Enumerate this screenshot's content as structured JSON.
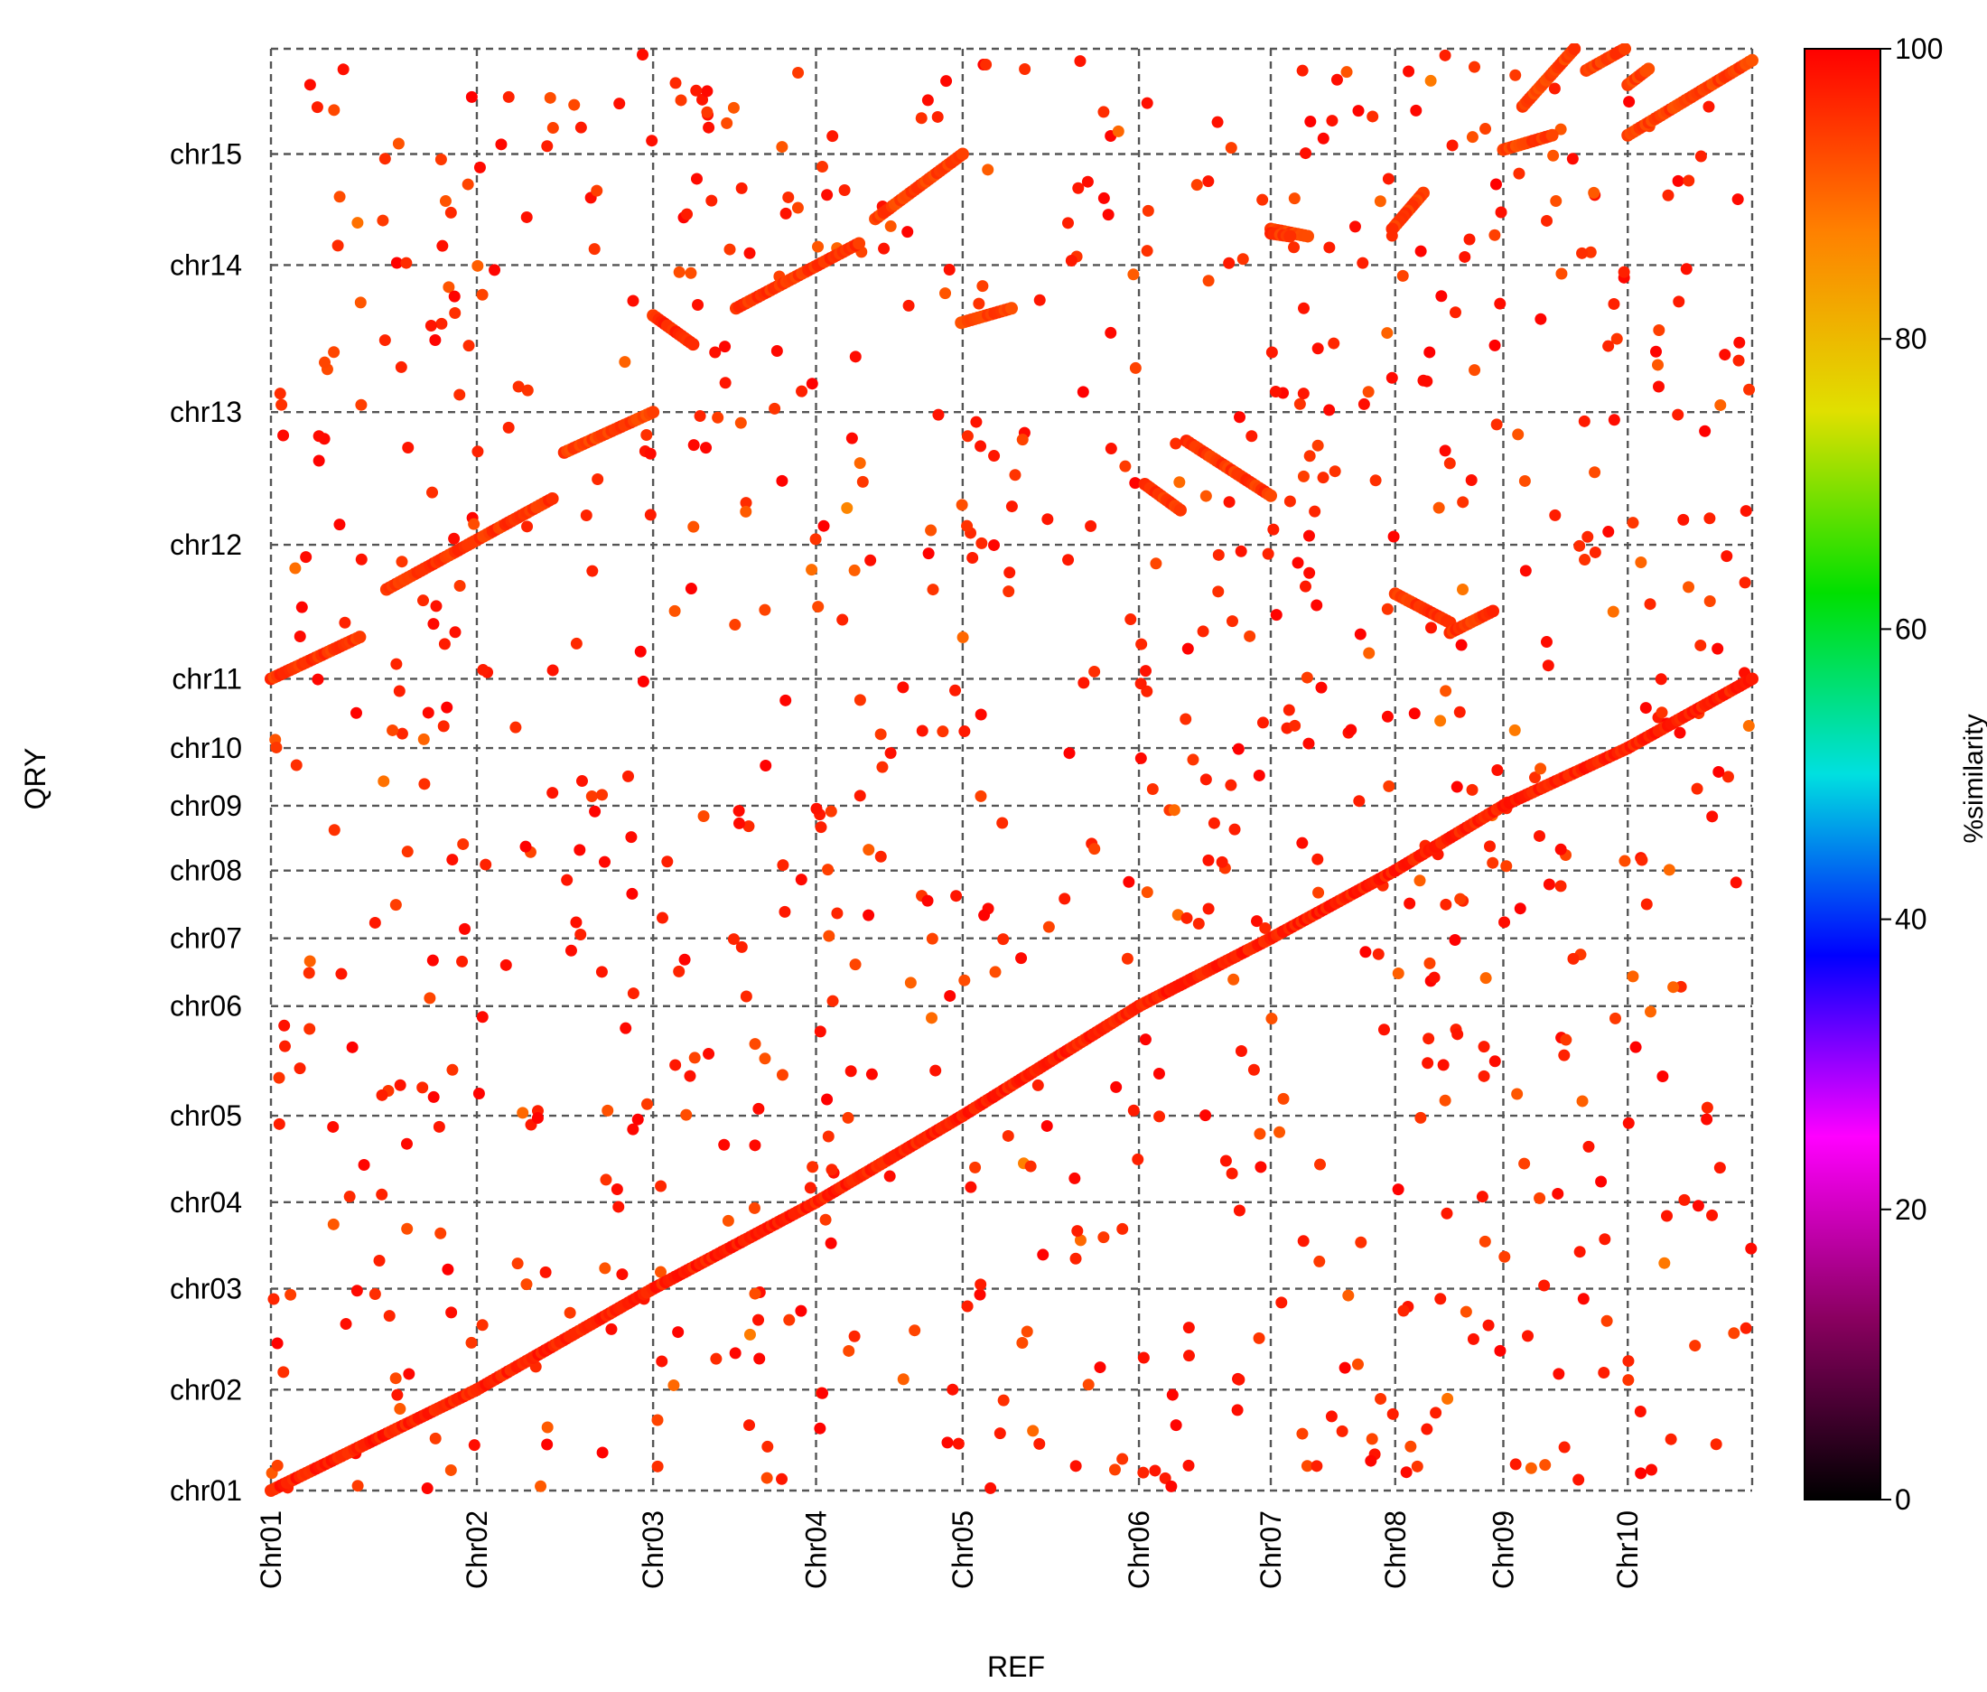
{
  "chart_data": {
    "type": "scatter",
    "xlabel": "REF",
    "ylabel": "QRY",
    "x_ticks": [
      {
        "label": "Chr01",
        "pos": 0
      },
      {
        "label": "Chr02",
        "pos": 13.9
      },
      {
        "label": "Chr03",
        "pos": 25.8
      },
      {
        "label": "Chr04",
        "pos": 36.8
      },
      {
        "label": "Chr05",
        "pos": 46.7
      },
      {
        "label": "Chr06",
        "pos": 58.6
      },
      {
        "label": "Chr07",
        "pos": 67.5
      },
      {
        "label": "Chr08",
        "pos": 75.9
      },
      {
        "label": "Chr09",
        "pos": 83.2
      },
      {
        "label": "Chr10",
        "pos": 91.6
      }
    ],
    "x_end": 100,
    "y_ticks": [
      {
        "label": "chr01",
        "pos": 0
      },
      {
        "label": "chr02",
        "pos": 7.0
      },
      {
        "label": "chr03",
        "pos": 14.0
      },
      {
        "label": "chr04",
        "pos": 20.0
      },
      {
        "label": "chr05",
        "pos": 26.0
      },
      {
        "label": "chr06",
        "pos": 33.6
      },
      {
        "label": "chr07",
        "pos": 38.3
      },
      {
        "label": "chr08",
        "pos": 43.0
      },
      {
        "label": "chr09",
        "pos": 47.5
      },
      {
        "label": "chr10",
        "pos": 51.5
      },
      {
        "label": "chr11",
        "pos": 56.3
      },
      {
        "label": "chr12",
        "pos": 65.6
      },
      {
        "label": "chr13",
        "pos": 74.8
      },
      {
        "label": "chr14",
        "pos": 85.0
      },
      {
        "label": "chr15",
        "pos": 92.7
      }
    ],
    "y_end": 100,
    "colorbar": {
      "label": "%similarity",
      "min": 0,
      "max": 100,
      "ticks": [
        0,
        20,
        40,
        60,
        80,
        100
      ],
      "stops": [
        "#000000",
        "#8a0060",
        "#ff00ff",
        "#0000ff",
        "#00e0e0",
        "#00e000",
        "#e0e000",
        "#ff8000",
        "#ff0000"
      ]
    },
    "grid": true,
    "series": [
      {
        "kind": "diagonal",
        "similarity": 99,
        "points": [
          [
            0,
            0
          ],
          [
            13.9,
            7.0
          ],
          [
            25.8,
            14.0
          ],
          [
            36.8,
            20.0
          ],
          [
            46.7,
            26.0
          ],
          [
            58.6,
            33.6
          ],
          [
            67.5,
            38.3
          ],
          [
            75.9,
            43.0
          ],
          [
            83.2,
            47.5
          ],
          [
            91.6,
            51.5
          ],
          [
            100,
            56.3
          ]
        ]
      },
      {
        "kind": "segment",
        "similarity": 97,
        "points": [
          [
            0,
            56.3
          ],
          [
            6.0,
            59.2
          ]
        ]
      },
      {
        "kind": "segment",
        "similarity": 97,
        "points": [
          [
            7.8,
            62.5
          ],
          [
            19.0,
            68.8
          ]
        ]
      },
      {
        "kind": "segment",
        "similarity": 96,
        "points": [
          [
            19.8,
            72.0
          ],
          [
            25.8,
            74.8
          ]
        ]
      },
      {
        "kind": "segment",
        "similarity": 98,
        "points": [
          [
            25.8,
            81.5
          ],
          [
            28.5,
            79.5
          ]
        ]
      },
      {
        "kind": "segment",
        "similarity": 97,
        "points": [
          [
            31.4,
            82.0
          ],
          [
            39.7,
            86.5
          ]
        ]
      },
      {
        "kind": "segment",
        "similarity": 96,
        "points": [
          [
            40.8,
            88.2
          ],
          [
            46.7,
            92.7
          ]
        ]
      },
      {
        "kind": "segment",
        "similarity": 96,
        "points": [
          [
            46.6,
            81.0
          ],
          [
            50.0,
            82.0
          ]
        ]
      },
      {
        "kind": "segment",
        "similarity": 97,
        "points": [
          [
            61.8,
            72.8
          ],
          [
            67.5,
            69.0
          ]
        ]
      },
      {
        "kind": "segment",
        "similarity": 96,
        "points": [
          [
            77.8,
            90.0
          ],
          [
            75.7,
            87.5
          ]
        ]
      },
      {
        "kind": "segment",
        "similarity": 96,
        "points": [
          [
            67.5,
            87.5
          ],
          [
            70.0,
            87.0
          ]
        ]
      },
      {
        "kind": "segment",
        "similarity": 97,
        "points": [
          [
            75.9,
            62.2
          ],
          [
            79.6,
            60.2
          ]
        ]
      },
      {
        "kind": "segment",
        "similarity": 97,
        "points": [
          [
            79.6,
            59.5
          ],
          [
            82.5,
            61.0
          ]
        ]
      },
      {
        "kind": "segment",
        "similarity": 96,
        "points": [
          [
            83.2,
            93.0
          ],
          [
            86.5,
            94.0
          ]
        ]
      },
      {
        "kind": "segment",
        "similarity": 96,
        "points": [
          [
            84.5,
            96.0
          ],
          [
            88.0,
            100.0
          ]
        ]
      },
      {
        "kind": "segment",
        "similarity": 96,
        "points": [
          [
            91.6,
            97.5
          ],
          [
            93.0,
            98.6
          ]
        ]
      },
      {
        "kind": "segment",
        "similarity": 96,
        "points": [
          [
            88.8,
            98.5
          ],
          [
            91.4,
            100.0
          ]
        ]
      },
      {
        "kind": "segment",
        "similarity": 96,
        "points": [
          [
            91.6,
            94.0
          ],
          [
            100,
            99.2
          ]
        ]
      },
      {
        "kind": "segment",
        "similarity": 97,
        "points": [
          [
            59.0,
            69.8
          ],
          [
            61.4,
            68.0
          ]
        ]
      },
      {
        "kind": "segment",
        "similarity": 97,
        "points": [
          [
            67.5,
            87.2
          ],
          [
            68.8,
            87.0
          ]
        ]
      }
    ],
    "scatter": {
      "count": 900,
      "similarity_range": [
        86,
        100
      ],
      "note": "background off-diagonal matches scattered across the whole plot"
    }
  }
}
